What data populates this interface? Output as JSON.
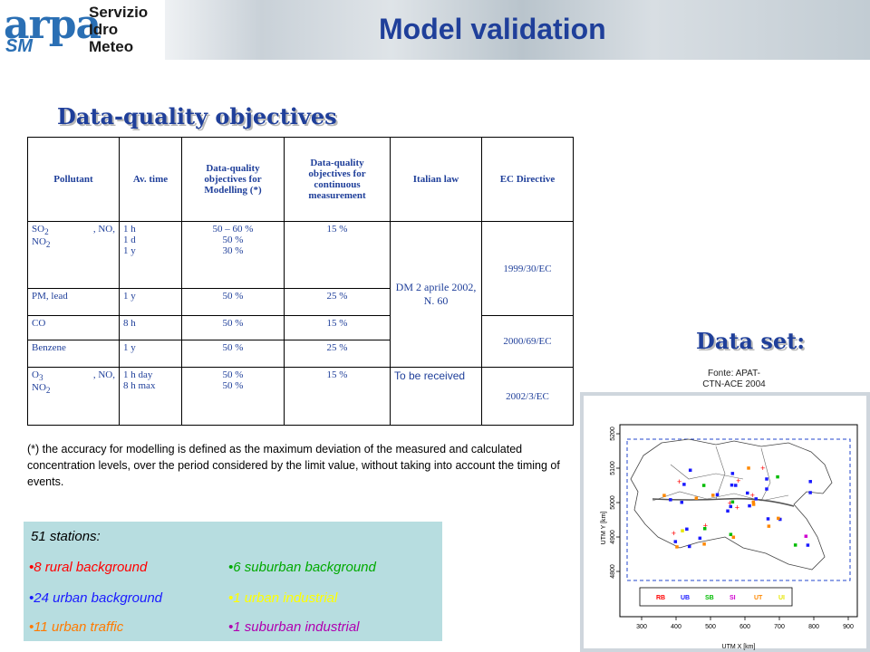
{
  "logo": {
    "brand": "arpa",
    "sub": "SM",
    "line1": "Servizio",
    "line2": "Idro",
    "line3": "Meteo"
  },
  "title": "Model validation",
  "section_title": "Data-quality objectives",
  "table": {
    "headers": [
      "Pollutant",
      "Av. time",
      "Data-quality objectives for Modelling (*)",
      "Data-quality objectives for continuous measurement",
      "Italian law",
      "EC Directive"
    ],
    "rows": [
      {
        "pollutant_a": "SO",
        "pollutant_a_sub": "2",
        "pollutant_b": ", NO,",
        "pollutant_c": "NO",
        "pollutant_c_sub": "2",
        "avtime": [
          "1 h",
          "1 d",
          "1 y"
        ],
        "modelling": [
          "50 – 60 %",
          "50 %",
          "30 %"
        ],
        "continuous": "15 %"
      },
      {
        "pollutant": "PM, lead",
        "avtime": "1 y",
        "modelling": "50 %",
        "continuous": "25 %"
      },
      {
        "pollutant": "CO",
        "avtime": "8 h",
        "modelling": "50 %",
        "continuous": "15 %"
      },
      {
        "pollutant": "Benzene",
        "avtime": "1 y",
        "modelling": "50 %",
        "continuous": "25 %"
      },
      {
        "pollutant_a": "O",
        "pollutant_a_sub": "3",
        "pollutant_b": ", NO,",
        "pollutant_c": "NO",
        "pollutant_c_sub": "2",
        "avtime": [
          "1 h day",
          "8 h max"
        ],
        "modelling": [
          "50 %",
          "50 %"
        ],
        "continuous": "15 %",
        "italian": "To be received",
        "ec": "2002/3/EC"
      }
    ],
    "italian_law_1": "DM 2 aprile 2002, N. 60",
    "ec_1": "1999/30/EC",
    "ec_2": "2000/69/EC"
  },
  "note": "(*) the accuracy for modelling is defined as the maximum deviation of the measured and calculated concentration levels, over the period considered by the limit value, without taking into account the timing of events.",
  "stations": {
    "title": "51 stations:",
    "items": [
      {
        "label": "•8 rural background",
        "color": "#ff0000"
      },
      {
        "label": "•24 urban background",
        "color": "#1a1aff"
      },
      {
        "label": "•11 urban traffic",
        "color": "#ff7a00"
      },
      {
        "label": "•6 suburban background",
        "color": "#00aa00"
      },
      {
        "label": "•1 urban industrial",
        "color": "#ffff00"
      },
      {
        "label": "•1 suburban industrial",
        "color": "#b000b0"
      }
    ]
  },
  "dataset": {
    "title": "Data set:",
    "source_line1": "Fonte: APAT-",
    "source_line2": "CTN-ACE 2004",
    "ylabel": "UTM Y [km]",
    "xlabel": "UTM X [km]",
    "xticks": [
      "300",
      "400",
      "500",
      "600",
      "700",
      "800",
      "900"
    ],
    "yticks": [
      "4800",
      "4900",
      "5000",
      "5100",
      "5200"
    ],
    "legend": [
      {
        "code": "RB",
        "color": "#ff0000"
      },
      {
        "code": "UB",
        "color": "#1a1aff"
      },
      {
        "code": "SB",
        "color": "#00bb00"
      },
      {
        "code": "SI",
        "color": "#d000d0"
      },
      {
        "code": "UT",
        "color": "#ff8800"
      },
      {
        "code": "UI",
        "color": "#e6e600"
      }
    ]
  }
}
